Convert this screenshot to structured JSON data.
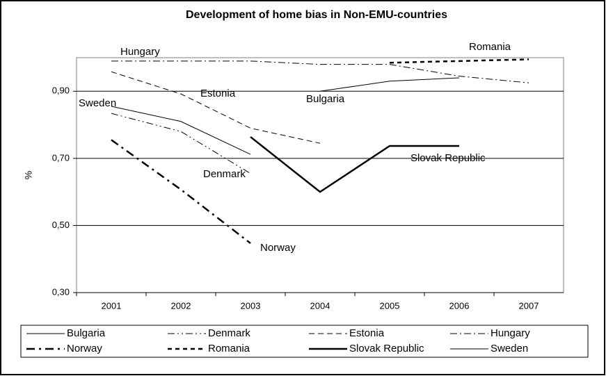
{
  "chart_data": {
    "type": "line",
    "title": "Development of home bias in Non-EMU-countries",
    "y_label": "%",
    "categories": [
      "2001",
      "2002",
      "2003",
      "2004",
      "2005",
      "2006",
      "2007"
    ],
    "ylim": [
      0.3,
      1.0
    ],
    "yticks": [
      {
        "value": 0.3,
        "label": "0,30"
      },
      {
        "value": 0.5,
        "label": "0,50"
      },
      {
        "value": 0.7,
        "label": "0,70"
      },
      {
        "value": 0.9,
        "label": "0,90"
      }
    ],
    "grid": true,
    "legend": "bottom",
    "series": [
      {
        "name": "Bulgaria",
        "color": "#000000",
        "values": [
          null,
          null,
          null,
          0.9,
          0.93,
          0.94,
          null
        ]
      },
      {
        "name": "Denmark",
        "color": "#000000",
        "values": [
          0.834,
          0.78,
          0.655,
          null,
          null,
          null,
          null
        ]
      },
      {
        "name": "Estonia",
        "color": "#000000",
        "values": [
          0.958,
          0.892,
          0.79,
          0.745,
          null,
          null,
          null
        ]
      },
      {
        "name": "Hungary",
        "color": "#000000",
        "values": [
          0.99,
          0.99,
          0.99,
          0.98,
          0.98,
          0.945,
          0.925
        ]
      },
      {
        "name": "Norway",
        "color": "#000000",
        "values": [
          0.755,
          0.607,
          0.447,
          null,
          null,
          null,
          null
        ]
      },
      {
        "name": "Romania",
        "color": "#000000",
        "values": [
          null,
          null,
          null,
          null,
          0.985,
          0.99,
          0.995
        ]
      },
      {
        "name": "Slovak Republic",
        "color": "#000000",
        "values": [
          null,
          null,
          0.764,
          0.6,
          0.737,
          0.737,
          null
        ]
      },
      {
        "name": "Sweden",
        "color": "#000000",
        "values": [
          0.855,
          0.81,
          0.712,
          null,
          null,
          null,
          null
        ]
      }
    ]
  }
}
